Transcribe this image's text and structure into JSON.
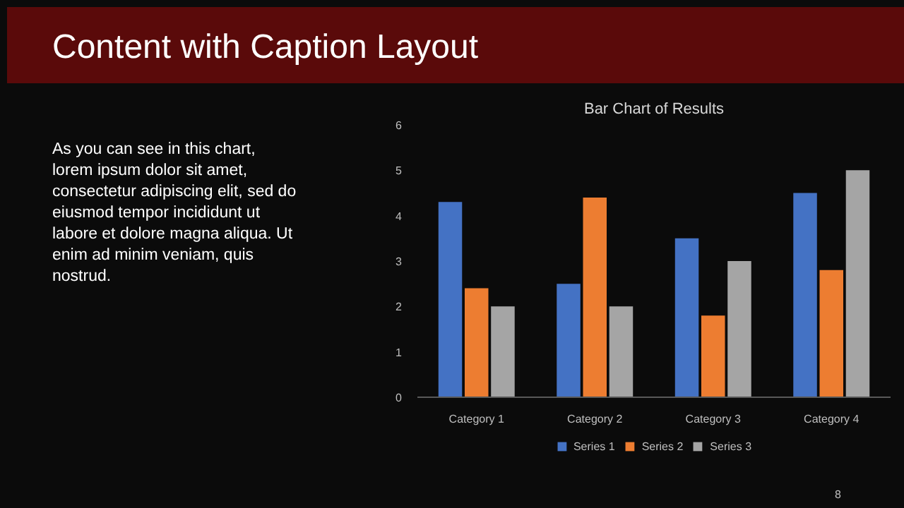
{
  "chart_data": {
    "type": "bar",
    "title": "Bar Chart of Results",
    "categories": [
      "Category 1",
      "Category 2",
      "Category 3",
      "Category 4"
    ],
    "series": [
      {
        "name": "Series 1",
        "color": "#4472c4",
        "values": [
          4.3,
          2.5,
          3.5,
          4.5
        ]
      },
      {
        "name": "Series 2",
        "color": "#ed7d31",
        "values": [
          2.4,
          4.4,
          1.8,
          2.8
        ]
      },
      {
        "name": "Series 3",
        "color": "#a5a5a5",
        "values": [
          2,
          2,
          3,
          5
        ]
      }
    ],
    "ylim": [
      0,
      6
    ],
    "yticks": [
      0,
      1,
      2,
      3,
      4,
      5,
      6
    ],
    "grid": false,
    "legend": "bottom",
    "annotations": [
      "Content with Caption Layout",
      "As you can see in this chart,\nlorem ipsum dolor sit amet,\nconsectetur adipiscing elit, sed do\neiusmod tempor incididunt ut\nlabore et dolore magna aliqua. Ut\nenim ad minim veniam, quis\nnostrud.",
      "8"
    ]
  }
}
